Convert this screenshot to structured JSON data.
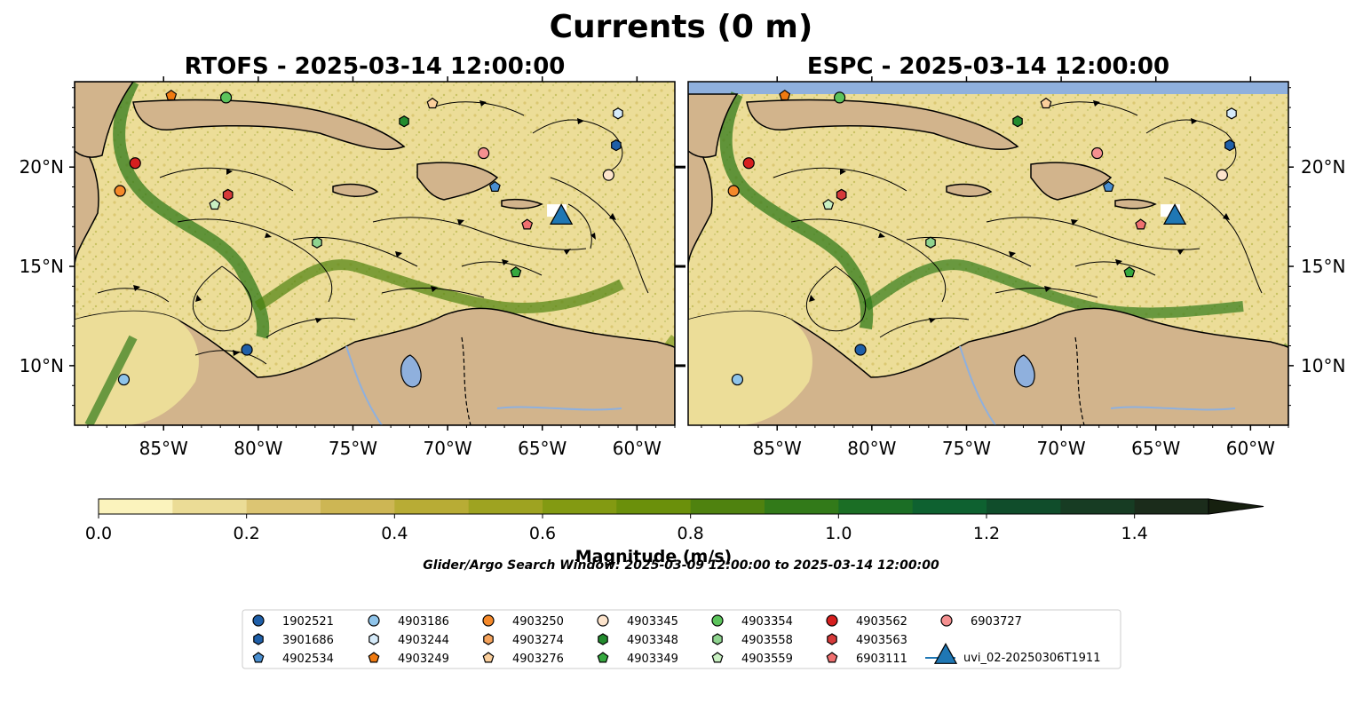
{
  "figure": {
    "title": "Currents (0 m)",
    "search_window": "Glider/Argo Search Window: 2025-03-09 12:00:00 to 2025-03-14 12:00:00"
  },
  "maps": [
    {
      "title": "RTOFS - 2025-03-14 12:00:00"
    },
    {
      "title": "ESPC - 2025-03-14 12:00:00"
    }
  ],
  "axes": {
    "x_ticks": [
      "85°W",
      "80°W",
      "75°W",
      "70°W",
      "65°W",
      "60°W"
    ],
    "y_ticks": [
      "20°N",
      "15°N",
      "10°N"
    ],
    "lon_values": [
      -85,
      -80,
      -75,
      -70,
      -65,
      -60
    ],
    "lat_values": [
      20,
      15,
      10
    ],
    "lon_range": [
      -89.7,
      -58.0
    ],
    "lat_range": [
      7.0,
      24.3
    ]
  },
  "colorbar": {
    "label": "Magnitude (m/s)",
    "tick_labels": [
      "0.0",
      "0.2",
      "0.4",
      "0.6",
      "0.8",
      "1.0",
      "1.2",
      "1.4"
    ],
    "range": [
      0,
      1.5
    ],
    "extend": "max",
    "bin_colors": [
      "#fbf3bd",
      "#ebdc96",
      "#dcc573",
      "#cdb654",
      "#b8ac35",
      "#9ea321",
      "#839a12",
      "#6b900b",
      "#4f820f",
      "#327a19",
      "#1b6e25",
      "#0e6130",
      "#104d2b",
      "#173c23",
      "#1b2c1b"
    ]
  },
  "colors": {
    "land": "#d2b48c",
    "water_low": "#fbf3bd",
    "lake": "#8fb0dd",
    "no_data_band": "#8fb0dd",
    "glider": "#1f77b4"
  },
  "legend": [
    {
      "label": "1902521",
      "marker": "circle",
      "color": "#1f5fa8"
    },
    {
      "label": "3901686",
      "marker": "hexagon",
      "color": "#1f5fa8"
    },
    {
      "label": "4902534",
      "marker": "pentagon",
      "color": "#4a8fd0"
    },
    {
      "label": "4903186",
      "marker": "circle",
      "color": "#8fc4ea"
    },
    {
      "label": "4903244",
      "marker": "hexagon",
      "color": "#d6ebfa"
    },
    {
      "label": "4903249",
      "marker": "pentagon",
      "color": "#f07a10"
    },
    {
      "label": "4903250",
      "marker": "circle",
      "color": "#f5892a"
    },
    {
      "label": "4903274",
      "marker": "hexagon",
      "color": "#f5a35c"
    },
    {
      "label": "4903276",
      "marker": "pentagon",
      "color": "#fbcf9c"
    },
    {
      "label": "4903345",
      "marker": "circle",
      "color": "#fde4cc"
    },
    {
      "label": "4903348",
      "marker": "hexagon",
      "color": "#238b2e"
    },
    {
      "label": "4903349",
      "marker": "pentagon",
      "color": "#36a83f"
    },
    {
      "label": "4903354",
      "marker": "circle",
      "color": "#5cc45c"
    },
    {
      "label": "4903558",
      "marker": "hexagon",
      "color": "#8fd48f"
    },
    {
      "label": "4903559",
      "marker": "pentagon",
      "color": "#c9f0c2"
    },
    {
      "label": "4903562",
      "marker": "circle",
      "color": "#d61f1f"
    },
    {
      "label": "4903563",
      "marker": "hexagon",
      "color": "#d63a3a"
    },
    {
      "label": "6903111",
      "marker": "pentagon",
      "color": "#f07070"
    },
    {
      "label": "6903727",
      "marker": "circle",
      "color": "#f59090"
    },
    {
      "label": "uvi_02-20250306T1911",
      "marker": "triangle",
      "color": "#1f77b4"
    }
  ],
  "platform_positions": [
    [
      {
        "id": "1902521",
        "lon": -80.6,
        "lat": 10.8
      },
      {
        "id": "3901686",
        "lon": -61.1,
        "lat": 21.1
      },
      {
        "id": "4902534",
        "lon": -67.5,
        "lat": 19.0
      },
      {
        "id": "4903186",
        "lon": -87.1,
        "lat": 9.3
      },
      {
        "id": "4903244",
        "lon": -61.0,
        "lat": 22.7
      },
      {
        "id": "4903249",
        "lon": -84.6,
        "lat": 23.6
      },
      {
        "id": "4903250",
        "lon": -87.3,
        "lat": 18.8
      },
      {
        "id": "4903274",
        "lon": -81.6,
        "lat": 18.6
      },
      {
        "id": "4903276",
        "lon": -70.8,
        "lat": 23.2
      },
      {
        "id": "4903345",
        "lon": -61.5,
        "lat": 19.6
      },
      {
        "id": "4903348",
        "lon": -72.3,
        "lat": 22.3
      },
      {
        "id": "4903349",
        "lon": -66.4,
        "lat": 14.7
      },
      {
        "id": "4903354",
        "lon": -81.7,
        "lat": 23.5
      },
      {
        "id": "4903558",
        "lon": -76.9,
        "lat": 16.2
      },
      {
        "id": "4903559",
        "lon": -82.3,
        "lat": 18.1
      },
      {
        "id": "4903562",
        "lon": -86.5,
        "lat": 20.2
      },
      {
        "id": "4903563",
        "lon": -81.6,
        "lat": 18.6
      },
      {
        "id": "6903111",
        "lon": -65.8,
        "lat": 17.1
      },
      {
        "id": "6903727",
        "lon": -68.1,
        "lat": 20.7
      },
      {
        "id": "uvi_02-20250306T1911",
        "lon": -64.0,
        "lat": 17.5
      }
    ],
    [
      {
        "id": "1902521",
        "lon": -80.6,
        "lat": 10.8
      },
      {
        "id": "3901686",
        "lon": -61.1,
        "lat": 21.1
      },
      {
        "id": "4902534",
        "lon": -67.5,
        "lat": 19.0
      },
      {
        "id": "4903186",
        "lon": -87.1,
        "lat": 9.3
      },
      {
        "id": "4903244",
        "lon": -61.0,
        "lat": 22.7
      },
      {
        "id": "4903249",
        "lon": -84.6,
        "lat": 23.6
      },
      {
        "id": "4903250",
        "lon": -87.3,
        "lat": 18.8
      },
      {
        "id": "4903274",
        "lon": -81.6,
        "lat": 18.6
      },
      {
        "id": "4903276",
        "lon": -70.8,
        "lat": 23.2
      },
      {
        "id": "4903345",
        "lon": -61.5,
        "lat": 19.6
      },
      {
        "id": "4903348",
        "lon": -72.3,
        "lat": 22.3
      },
      {
        "id": "4903349",
        "lon": -66.4,
        "lat": 14.7
      },
      {
        "id": "4903354",
        "lon": -81.7,
        "lat": 23.5
      },
      {
        "id": "4903558",
        "lon": -76.9,
        "lat": 16.2
      },
      {
        "id": "4903559",
        "lon": -82.3,
        "lat": 18.1
      },
      {
        "id": "4903562",
        "lon": -86.5,
        "lat": 20.2
      },
      {
        "id": "4903563",
        "lon": -81.6,
        "lat": 18.6
      },
      {
        "id": "6903111",
        "lon": -65.8,
        "lat": 17.1
      },
      {
        "id": "6903727",
        "lon": -68.1,
        "lat": 20.7
      },
      {
        "id": "uvi_02-20250306T1911",
        "lon": -64.0,
        "lat": 17.5
      }
    ]
  ]
}
